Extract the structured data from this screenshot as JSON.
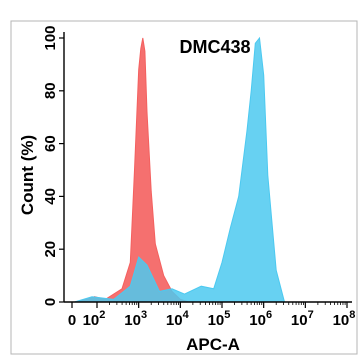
{
  "chart_data": {
    "type": "area",
    "title": "DMC438",
    "xlabel": "APC-A",
    "ylabel": "Count  (%)",
    "xscale": "biexponential",
    "xlim": [
      0,
      100000000
    ],
    "ylim": [
      0,
      100
    ],
    "x_ticks": [
      {
        "label": "0",
        "value": 0,
        "exp": ""
      },
      {
        "label": "10",
        "value": 100,
        "exp": "2"
      },
      {
        "label": "10",
        "value": 1000,
        "exp": "3"
      },
      {
        "label": "10",
        "value": 10000,
        "exp": "4"
      },
      {
        "label": "10",
        "value": 100000,
        "exp": "5"
      },
      {
        "label": "10",
        "value": 1000000,
        "exp": "6"
      },
      {
        "label": "10",
        "value": 10000000,
        "exp": "7"
      },
      {
        "label": "10",
        "value": 100000000,
        "exp": "8"
      }
    ],
    "y_ticks": [
      0,
      20,
      40,
      60,
      80,
      100
    ],
    "grid": false,
    "series": [
      {
        "color": "#f4605f",
        "log10_x": [
          1.1,
          1.6,
          1.9,
          2.2,
          2.6,
          2.8,
          2.9,
          3.0,
          3.05,
          3.1,
          3.15,
          3.2,
          3.3,
          3.4,
          3.6,
          3.8,
          4.0,
          4.2
        ],
        "y": [
          0,
          1,
          2,
          1,
          5,
          15,
          50,
          88,
          96,
          100,
          95,
          72,
          42,
          22,
          10,
          4,
          1,
          0
        ]
      },
      {
        "color": "#4cc9f0",
        "log10_x": [
          1.1,
          1.8,
          2.4,
          2.8,
          3.0,
          3.2,
          3.5,
          3.8,
          4.1,
          4.5,
          4.8,
          5.0,
          5.2,
          5.4,
          5.6,
          5.7,
          5.8,
          5.9,
          6.0,
          6.1,
          6.3,
          6.5
        ],
        "y": [
          0,
          2,
          1,
          6,
          17,
          14,
          4,
          5,
          3,
          6,
          5,
          15,
          28,
          40,
          65,
          80,
          98,
          100,
          86,
          48,
          12,
          0
        ]
      }
    ]
  }
}
